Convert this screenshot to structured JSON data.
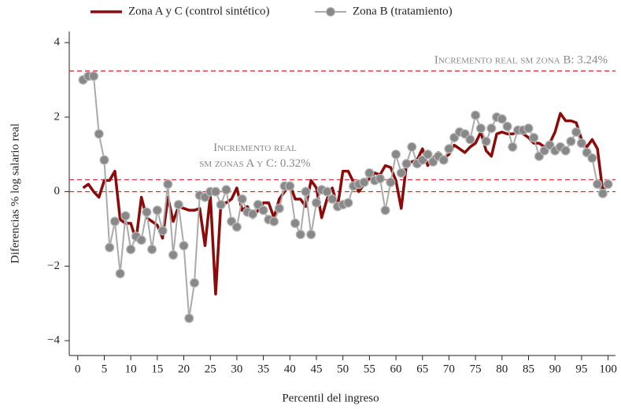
{
  "chart_data": {
    "type": "line",
    "x_label": "Percentil del ingreso",
    "y_label": "Diferencias % log salario real",
    "x": [
      1,
      2,
      3,
      4,
      5,
      6,
      7,
      8,
      9,
      10,
      11,
      12,
      13,
      14,
      15,
      16,
      17,
      18,
      19,
      20,
      21,
      22,
      23,
      24,
      25,
      26,
      27,
      28,
      29,
      30,
      31,
      32,
      33,
      34,
      35,
      36,
      37,
      38,
      39,
      40,
      41,
      42,
      43,
      44,
      45,
      46,
      47,
      48,
      49,
      50,
      51,
      52,
      53,
      54,
      55,
      56,
      57,
      58,
      59,
      60,
      61,
      62,
      63,
      64,
      65,
      66,
      67,
      68,
      69,
      70,
      71,
      72,
      73,
      74,
      75,
      76,
      77,
      78,
      79,
      80,
      81,
      82,
      83,
      84,
      85,
      86,
      87,
      88,
      89,
      90,
      91,
      92,
      93,
      94,
      95,
      96,
      97,
      98,
      99,
      100
    ],
    "series": [
      {
        "name": "Zona A y C (control sintético)",
        "color": "#8b0a0a",
        "markers": false,
        "values": [
          0.1,
          0.2,
          0.0,
          -0.15,
          0.3,
          0.3,
          0.55,
          -0.75,
          -0.85,
          -0.85,
          -1.3,
          -0.15,
          -0.7,
          -0.8,
          -0.9,
          -1.25,
          -0.15,
          -0.8,
          -0.4,
          -0.45,
          -0.5,
          -0.5,
          -0.45,
          -1.45,
          -0.1,
          -2.75,
          -0.3,
          -0.3,
          -0.2,
          0.1,
          -0.5,
          -0.4,
          -0.7,
          -0.5,
          -0.3,
          -0.3,
          -0.7,
          -0.2,
          0.0,
          0.2,
          -0.2,
          -0.2,
          -0.4,
          0.3,
          0.1,
          -0.7,
          -0.2,
          0.1,
          -0.4,
          0.55,
          0.55,
          0.25,
          0.0,
          0.2,
          0.35,
          0.5,
          0.45,
          0.7,
          0.65,
          0.3,
          -0.45,
          0.75,
          0.8,
          0.85,
          1.15,
          0.7,
          0.9,
          1.05,
          0.9,
          1.0,
          1.25,
          1.15,
          1.05,
          1.2,
          1.3,
          1.6,
          1.1,
          0.95,
          1.55,
          1.6,
          1.55,
          1.55,
          1.6,
          1.55,
          1.45,
          1.3,
          1.3,
          1.2,
          1.3,
          1.6,
          2.1,
          1.9,
          1.9,
          1.85,
          1.4,
          1.2,
          1.4,
          1.15,
          0.0,
          0.2
        ]
      },
      {
        "name": "Zona B (tratamiento)",
        "color": "#aaaaaa",
        "markers": true,
        "values": [
          3.0,
          3.1,
          3.1,
          1.55,
          0.85,
          -1.5,
          -0.8,
          -2.2,
          -0.65,
          -1.55,
          -1.2,
          -1.3,
          -0.55,
          -1.55,
          -0.5,
          -1.05,
          0.2,
          -1.7,
          -0.35,
          -1.45,
          -3.4,
          -2.45,
          -0.1,
          -0.15,
          0.0,
          0.0,
          -0.35,
          0.05,
          -0.8,
          -0.95,
          -0.2,
          -0.55,
          -0.6,
          -0.35,
          -0.5,
          -0.75,
          -0.8,
          -0.45,
          0.15,
          0.15,
          -0.85,
          -1.15,
          0.0,
          -1.15,
          -0.3,
          0.05,
          0.0,
          -0.2,
          -0.4,
          -0.35,
          -0.3,
          0.15,
          0.2,
          0.25,
          0.5,
          0.3,
          0.35,
          -0.5,
          0.25,
          1.0,
          0.5,
          0.75,
          1.2,
          0.75,
          0.85,
          1.0,
          0.8,
          0.95,
          0.85,
          1.15,
          1.45,
          1.6,
          1.55,
          1.4,
          2.05,
          1.7,
          1.35,
          1.7,
          2.0,
          1.95,
          1.75,
          1.2,
          1.65,
          1.65,
          1.7,
          1.45,
          0.95,
          1.1,
          1.25,
          1.1,
          1.2,
          1.1,
          1.35,
          1.6,
          1.3,
          1.05,
          0.9,
          0.2,
          -0.05,
          0.2
        ]
      }
    ],
    "xlim": [
      -1.6,
      101.4
    ],
    "xticks": [
      0,
      5,
      10,
      15,
      20,
      25,
      30,
      35,
      40,
      45,
      50,
      55,
      60,
      65,
      70,
      75,
      80,
      85,
      90,
      95,
      100
    ],
    "ylim": [
      -4.4,
      4.3
    ],
    "yticks": [
      {
        "value": -4,
        "label": "−4"
      },
      {
        "value": -2,
        "label": "−2"
      },
      0,
      2,
      4
    ],
    "hlines": [
      {
        "value": 3.24,
        "label": "Incremento real sm zona B: 3.24%"
      },
      {
        "value": 0.32,
        "label": [
          "Incremento real",
          "sm zonas A y C: 0.32%"
        ]
      },
      {
        "value": 0
      }
    ],
    "hline_color": "#e0303a"
  }
}
